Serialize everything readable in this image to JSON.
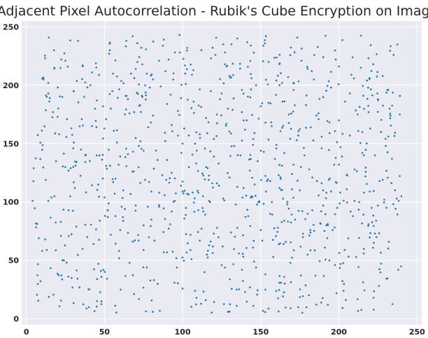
{
  "chart_data": {
    "type": "scatter",
    "title": "Adjacent Pixel Autocorrelation - Rubik's Cube Encryption on Image",
    "xlabel": "",
    "ylabel": "",
    "xlim": [
      -3,
      253
    ],
    "ylim": [
      -5,
      255
    ],
    "x_ticks": [
      0,
      50,
      100,
      150,
      200,
      250
    ],
    "y_ticks": [
      0,
      50,
      100,
      150,
      200,
      250
    ],
    "x_tick_labels": [
      "0",
      "50",
      "100",
      "150",
      "200",
      "250"
    ],
    "y_tick_labels": [
      "0",
      "50",
      "100",
      "150",
      "200",
      "250"
    ],
    "grid": true,
    "legend": "none",
    "point_color": "#1f77b4",
    "background_color": "#eaeaf2",
    "point_count": 1000,
    "x_range": [
      4,
      240
    ],
    "y_range": [
      5,
      243
    ],
    "density_note": "points uniformly scattered over 0-255 in both axes",
    "points": [
      [
        4,
        101
      ],
      [
        11,
        205
      ],
      [
        12,
        68
      ],
      [
        13,
        59
      ],
      [
        14,
        202
      ],
      [
        15,
        189
      ],
      [
        16,
        104
      ],
      [
        17,
        177
      ],
      [
        18,
        105
      ],
      [
        19,
        135
      ],
      [
        20,
        173
      ],
      [
        21,
        158
      ],
      [
        22,
        83
      ],
      [
        23,
        190
      ],
      [
        24,
        50
      ],
      [
        25,
        221
      ],
      [
        26,
        171
      ],
      [
        27,
        93
      ],
      [
        28,
        105
      ],
      [
        29,
        35
      ],
      [
        30,
        146
      ],
      [
        31,
        112
      ],
      [
        32,
        79
      ],
      [
        33,
        238
      ],
      [
        34,
        27
      ],
      [
        35,
        145
      ],
      [
        36,
        217
      ],
      [
        37,
        190
      ],
      [
        38,
        140
      ],
      [
        39,
        70
      ],
      [
        40,
        10
      ],
      [
        41,
        200
      ],
      [
        42,
        165
      ],
      [
        43,
        64
      ],
      [
        44,
        180
      ],
      [
        45,
        187
      ],
      [
        46,
        115
      ],
      [
        47,
        84
      ],
      [
        48,
        36
      ],
      [
        49,
        182
      ],
      [
        50,
        104
      ],
      [
        51,
        131
      ],
      [
        52,
        93
      ],
      [
        53,
        227
      ],
      [
        54,
        72
      ],
      [
        55,
        195
      ],
      [
        56,
        161
      ],
      [
        57,
        88
      ],
      [
        58,
        151
      ],
      [
        59,
        132
      ],
      [
        60,
        76
      ],
      [
        61,
        96
      ],
      [
        62,
        110
      ],
      [
        63,
        175
      ],
      [
        64,
        238
      ],
      [
        65,
        141
      ],
      [
        66,
        48
      ],
      [
        67,
        210
      ],
      [
        68,
        126
      ],
      [
        69,
        177
      ],
      [
        70,
        97
      ],
      [
        71,
        236
      ],
      [
        72,
        17
      ],
      [
        73,
        152
      ],
      [
        74,
        191
      ],
      [
        75,
        80
      ],
      [
        76,
        119
      ],
      [
        77,
        44
      ],
      [
        78,
        164
      ],
      [
        79,
        198
      ],
      [
        80,
        85
      ],
      [
        81,
        174
      ],
      [
        82,
        67
      ],
      [
        83,
        144
      ],
      [
        84,
        30
      ],
      [
        85,
        108
      ],
      [
        86,
        199
      ],
      [
        87,
        123
      ],
      [
        88,
        57
      ],
      [
        89,
        212
      ],
      [
        90,
        136
      ],
      [
        91,
        222
      ],
      [
        92,
        81
      ],
      [
        93,
        166
      ],
      [
        94,
        205
      ],
      [
        95,
        101
      ],
      [
        96,
        52
      ],
      [
        97,
        178
      ],
      [
        98,
        243
      ],
      [
        99,
        114
      ],
      [
        100,
        26
      ],
      [
        101,
        163
      ],
      [
        102,
        89
      ],
      [
        103,
        232
      ],
      [
        104,
        130
      ],
      [
        105,
        72
      ],
      [
        106,
        209
      ],
      [
        107,
        186
      ],
      [
        108,
        24
      ],
      [
        109,
        144
      ],
      [
        110,
        93
      ],
      [
        111,
        158
      ],
      [
        112,
        230
      ],
      [
        113,
        105
      ],
      [
        114,
        40
      ],
      [
        115,
        172
      ],
      [
        116,
        129
      ],
      [
        117,
        63
      ],
      [
        118,
        195
      ],
      [
        119,
        116
      ],
      [
        120,
        154
      ],
      [
        121,
        226
      ],
      [
        122,
        78
      ],
      [
        123,
        133
      ],
      [
        124,
        188
      ],
      [
        125,
        46
      ],
      [
        126,
        103
      ],
      [
        127,
        218
      ],
      [
        128,
        167
      ],
      [
        129,
        6
      ],
      [
        130,
        121
      ],
      [
        131,
        74
      ],
      [
        132,
        179
      ],
      [
        133,
        148
      ],
      [
        134,
        98
      ],
      [
        135,
        240
      ],
      [
        136,
        56
      ],
      [
        137,
        140
      ],
      [
        138,
        196
      ],
      [
        139,
        112
      ],
      [
        140,
        23
      ],
      [
        141,
        170
      ],
      [
        142,
        88
      ],
      [
        143,
        127
      ],
      [
        144,
        206
      ],
      [
        145,
        61
      ],
      [
        146,
        159
      ],
      [
        147,
        44
      ],
      [
        148,
        135
      ],
      [
        149,
        100
      ],
      [
        150,
        182
      ],
      [
        151,
        67
      ],
      [
        152,
        143
      ],
      [
        153,
        25
      ],
      [
        154,
        118
      ],
      [
        155,
        220
      ],
      [
        156,
        90
      ],
      [
        157,
        165
      ],
      [
        158,
        53
      ],
      [
        159,
        137
      ],
      [
        160,
        204
      ],
      [
        161,
        78
      ],
      [
        162,
        112
      ],
      [
        163,
        31
      ],
      [
        164,
        186
      ],
      [
        165,
        142
      ],
      [
        166,
        66
      ],
      [
        167,
        98
      ],
      [
        168,
        175
      ],
      [
        169,
        48
      ],
      [
        170,
        124
      ],
      [
        171,
        196
      ],
      [
        172,
        85
      ],
      [
        173,
        153
      ],
      [
        174,
        10
      ],
      [
        175,
        110
      ],
      [
        176,
        221
      ],
      [
        177,
        70
      ],
      [
        178,
        140
      ],
      [
        179,
        183
      ],
      [
        180,
        55
      ],
      [
        181,
        128
      ],
      [
        182,
        164
      ],
      [
        183,
        93
      ],
      [
        184,
        205
      ],
      [
        185,
        37
      ],
      [
        186,
        118
      ],
      [
        187,
        176
      ],
      [
        188,
        82
      ],
      [
        189,
        146
      ],
      [
        190,
        224
      ],
      [
        191,
        61
      ],
      [
        192,
        108
      ],
      [
        193,
        12
      ],
      [
        194,
        159
      ],
      [
        195,
        198
      ],
      [
        196,
        76
      ],
      [
        197,
        132
      ],
      [
        198,
        222
      ],
      [
        199,
        95
      ],
      [
        200,
        170
      ],
      [
        201,
        47
      ],
      [
        202,
        139
      ],
      [
        203,
        24
      ],
      [
        204,
        186
      ],
      [
        205,
        111
      ],
      [
        206,
        69
      ],
      [
        207,
        157
      ],
      [
        208,
        209
      ],
      [
        209,
        88
      ],
      [
        210,
        128
      ],
      [
        211,
        53
      ],
      [
        212,
        175
      ],
      [
        213,
        100
      ],
      [
        214,
        215
      ],
      [
        215,
        142
      ],
      [
        216,
        60
      ],
      [
        217,
        122
      ],
      [
        218,
        204
      ],
      [
        219,
        81
      ],
      [
        220,
        163
      ],
      [
        221,
        95
      ],
      [
        222,
        218
      ],
      [
        223,
        140
      ],
      [
        224,
        70
      ],
      [
        225,
        188
      ],
      [
        226,
        118
      ],
      [
        227,
        160
      ],
      [
        228,
        208
      ],
      [
        229,
        102
      ],
      [
        230,
        148
      ],
      [
        231,
        196
      ],
      [
        232,
        66
      ],
      [
        233,
        174
      ],
      [
        234,
        137
      ],
      [
        235,
        226
      ],
      [
        236,
        110
      ],
      [
        237,
        103
      ],
      [
        238,
        42
      ],
      [
        239,
        175
      ],
      [
        240,
        105
      ],
      [
        18,
        215
      ],
      [
        27,
        127
      ],
      [
        36,
        60
      ],
      [
        45,
        140
      ],
      [
        54,
        180
      ],
      [
        63,
        94
      ],
      [
        72,
        148
      ],
      [
        81,
        205
      ],
      [
        90,
        57
      ],
      [
        99,
        189
      ],
      [
        108,
        150
      ],
      [
        117,
        101
      ],
      [
        126,
        235
      ],
      [
        135,
        78
      ],
      [
        144,
        105
      ],
      [
        153,
        168
      ],
      [
        162,
        200
      ],
      [
        171,
        132
      ],
      [
        180,
        90
      ],
      [
        189,
        156
      ],
      [
        198,
        117
      ],
      [
        207,
        193
      ],
      [
        216,
        140
      ],
      [
        225,
        97
      ],
      [
        57,
        120
      ],
      [
        66,
        176
      ],
      [
        75,
        59
      ],
      [
        84,
        136
      ],
      [
        93,
        92
      ],
      [
        102,
        201
      ],
      [
        111,
        67
      ],
      [
        120,
        139
      ],
      [
        129,
        180
      ],
      [
        138,
        42
      ],
      [
        147,
        200
      ],
      [
        156,
        118
      ],
      [
        165,
        84
      ],
      [
        174,
        157
      ],
      [
        183,
        121
      ],
      [
        192,
        80
      ],
      [
        201,
        147
      ],
      [
        210,
        101
      ],
      [
        219,
        177
      ],
      [
        228,
        119
      ],
      [
        60,
        139
      ],
      [
        70,
        214
      ],
      [
        80,
        109
      ],
      [
        90,
        184
      ],
      [
        100,
        150
      ],
      [
        110,
        108
      ],
      [
        120,
        73
      ],
      [
        130,
        208
      ],
      [
        140,
        162
      ],
      [
        150,
        76
      ],
      [
        160,
        149
      ],
      [
        170,
        111
      ],
      [
        180,
        214
      ],
      [
        190,
        97
      ],
      [
        200,
        132
      ],
      [
        65,
        188
      ],
      [
        75,
        144
      ],
      [
        85,
        96
      ],
      [
        95,
        228
      ],
      [
        105,
        59
      ],
      [
        115,
        130
      ],
      [
        125,
        193
      ],
      [
        135,
        113
      ],
      [
        145,
        149
      ],
      [
        155,
        185
      ]
    ]
  }
}
